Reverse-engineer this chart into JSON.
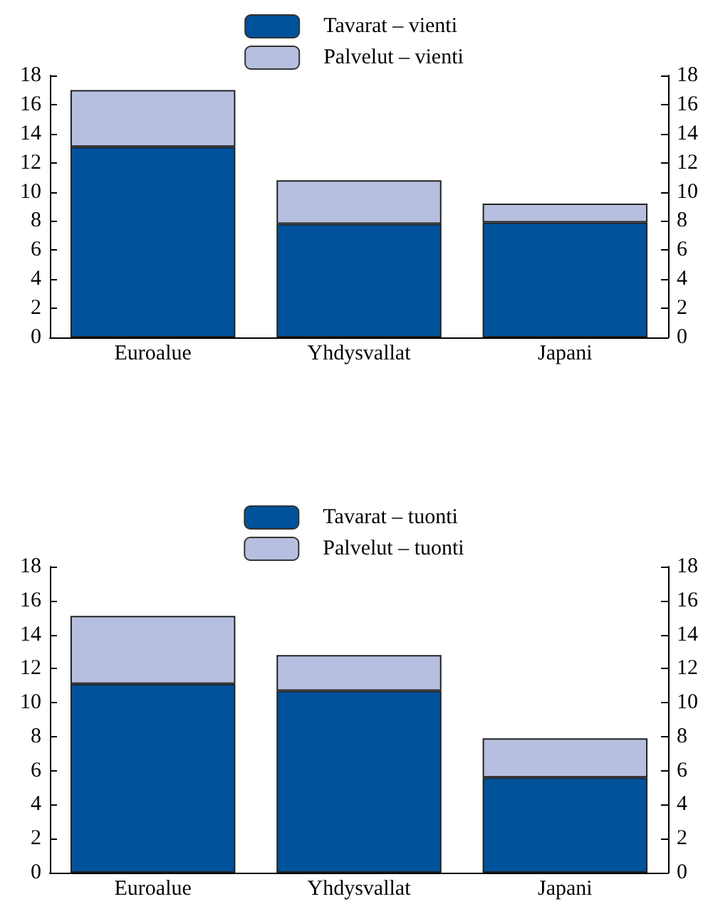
{
  "chart_data": [
    {
      "type": "bar",
      "stacked": true,
      "categories": [
        "Euroalue",
        "Yhdysvallat",
        "Japani"
      ],
      "series": [
        {
          "name": "Tavarat – vienti",
          "color": "#00529b",
          "values": [
            13.1,
            7.8,
            7.9
          ]
        },
        {
          "name": "Palvelut – vienti",
          "color": "#b7bfe0",
          "values": [
            3.9,
            3.0,
            1.3
          ]
        }
      ],
      "ylim": [
        0,
        18
      ],
      "yticks": [
        0,
        2,
        4,
        6,
        8,
        10,
        12,
        14,
        16,
        18
      ],
      "y2lim": [
        0,
        18
      ],
      "y2ticks": [
        0,
        2,
        4,
        6,
        8,
        10,
        12,
        14,
        16,
        18
      ],
      "legend": "top",
      "grid": false
    },
    {
      "type": "bar",
      "stacked": true,
      "categories": [
        "Euroalue",
        "Yhdysvallat",
        "Japani"
      ],
      "series": [
        {
          "name": "Tavarat – tuonti",
          "color": "#00529b",
          "values": [
            11.1,
            10.7,
            5.6
          ]
        },
        {
          "name": "Palvelut – tuonti",
          "color": "#b7bfe0",
          "values": [
            4.0,
            2.1,
            2.3
          ]
        }
      ],
      "ylim": [
        0,
        18
      ],
      "yticks": [
        0,
        2,
        4,
        6,
        8,
        10,
        12,
        14,
        16,
        18
      ],
      "y2lim": [
        0,
        18
      ],
      "y2ticks": [
        0,
        2,
        4,
        6,
        8,
        10,
        12,
        14,
        16,
        18
      ],
      "legend": "top",
      "grid": false
    }
  ]
}
